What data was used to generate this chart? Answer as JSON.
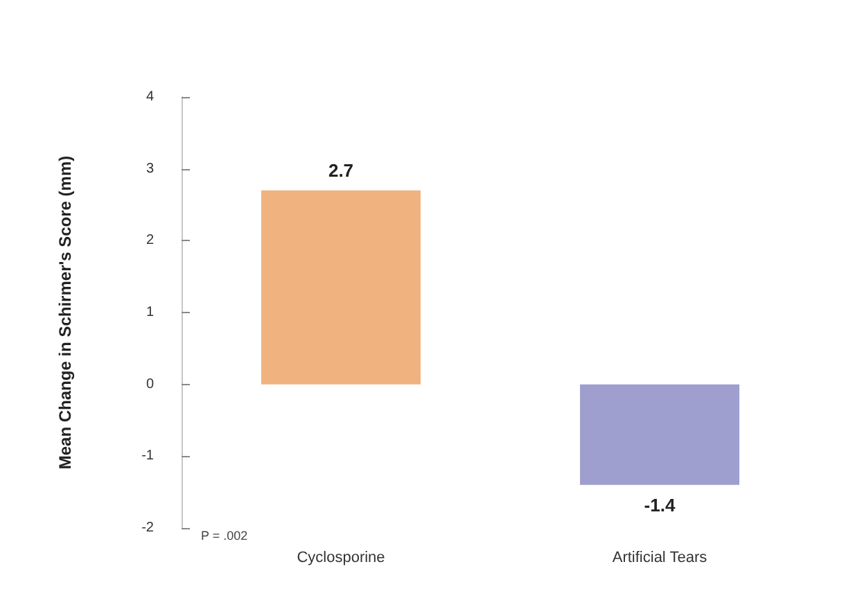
{
  "chart_data": {
    "type": "bar",
    "ylabel": "Mean Change in Schirmer's Score (mm)",
    "categories": [
      "Cyclosporine",
      "Artificial Tears"
    ],
    "values": [
      2.7,
      -1.4
    ],
    "colors": [
      "#f0b27f",
      "#9e9fcf"
    ],
    "ylim": [
      -2,
      4
    ],
    "yticks": [
      -2,
      -1,
      0,
      1,
      2,
      3,
      4
    ],
    "grid": false,
    "data_labels": true,
    "annotations": [
      "P = .002"
    ]
  }
}
